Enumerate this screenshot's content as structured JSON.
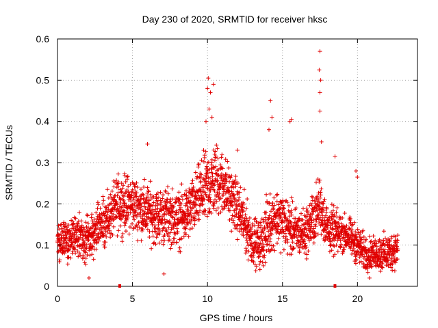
{
  "chart_data": {
    "type": "scatter",
    "title": "Day 230 of 2020, SRMTID for receiver hksc",
    "xlabel": "GPS time / hours",
    "ylabel": "SRMTID / TECUs",
    "xlim": [
      0,
      24
    ],
    "ylim": [
      0,
      0.6
    ],
    "x_ticks": [
      "0",
      "5",
      "10",
      "15",
      "20"
    ],
    "x_tick_values": [
      0,
      5,
      10,
      15,
      20
    ],
    "y_ticks": [
      "0",
      "0.1",
      "0.2",
      "0.3",
      "0.4",
      "0.5",
      "0.6"
    ],
    "y_tick_values": [
      0,
      0.1,
      0.2,
      0.3,
      0.4,
      0.5,
      0.6
    ],
    "grid": true,
    "marker": "+",
    "series": [
      {
        "name": "SRMTID",
        "color": "#e00000",
        "envelope": {
          "x": [
            0,
            0.5,
            1,
            1.5,
            2,
            2.5,
            3,
            3.5,
            4,
            4.5,
            5,
            5.5,
            6,
            6.5,
            7,
            7.5,
            8,
            8.5,
            9,
            9.5,
            10,
            10.5,
            11,
            11.5,
            12,
            12.5,
            13,
            13.5,
            14,
            14.5,
            15,
            15.5,
            16,
            16.5,
            17,
            17.5,
            18,
            18.5,
            19,
            19.5,
            20,
            20.5,
            21,
            21.5,
            22,
            22.5,
            22.7
          ],
          "center": [
            0.11,
            0.11,
            0.12,
            0.12,
            0.11,
            0.13,
            0.15,
            0.17,
            0.2,
            0.2,
            0.2,
            0.19,
            0.18,
            0.17,
            0.17,
            0.17,
            0.16,
            0.17,
            0.19,
            0.22,
            0.24,
            0.26,
            0.25,
            0.22,
            0.19,
            0.15,
            0.11,
            0.1,
            0.14,
            0.17,
            0.16,
            0.14,
            0.13,
            0.13,
            0.16,
            0.2,
            0.14,
            0.13,
            0.13,
            0.12,
            0.1,
            0.08,
            0.08,
            0.08,
            0.08,
            0.09,
            0.09
          ],
          "spread": [
            0.04,
            0.04,
            0.04,
            0.05,
            0.05,
            0.05,
            0.05,
            0.05,
            0.06,
            0.06,
            0.06,
            0.06,
            0.06,
            0.06,
            0.06,
            0.06,
            0.06,
            0.06,
            0.06,
            0.07,
            0.08,
            0.08,
            0.07,
            0.06,
            0.06,
            0.06,
            0.05,
            0.05,
            0.07,
            0.06,
            0.06,
            0.06,
            0.05,
            0.05,
            0.06,
            0.06,
            0.05,
            0.05,
            0.04,
            0.04,
            0.04,
            0.04,
            0.03,
            0.04,
            0.04,
            0.04,
            0.04
          ]
        },
        "outliers": [
          {
            "x": 10.0,
            "y": 0.48
          },
          {
            "x": 10.05,
            "y": 0.505
          },
          {
            "x": 10.2,
            "y": 0.47
          },
          {
            "x": 10.4,
            "y": 0.49
          },
          {
            "x": 10.1,
            "y": 0.43
          },
          {
            "x": 9.9,
            "y": 0.4
          },
          {
            "x": 10.3,
            "y": 0.41
          },
          {
            "x": 14.2,
            "y": 0.45
          },
          {
            "x": 14.3,
            "y": 0.41
          },
          {
            "x": 14.1,
            "y": 0.38
          },
          {
            "x": 15.6,
            "y": 0.405
          },
          {
            "x": 15.5,
            "y": 0.4
          },
          {
            "x": 17.5,
            "y": 0.57
          },
          {
            "x": 17.45,
            "y": 0.525
          },
          {
            "x": 17.55,
            "y": 0.5
          },
          {
            "x": 17.5,
            "y": 0.47
          },
          {
            "x": 17.5,
            "y": 0.425
          },
          {
            "x": 17.6,
            "y": 0.35
          },
          {
            "x": 18.5,
            "y": 0.315
          },
          {
            "x": 19.9,
            "y": 0.28
          },
          {
            "x": 20.0,
            "y": 0.265
          },
          {
            "x": 2.1,
            "y": 0.02
          },
          {
            "x": 7.1,
            "y": 0.03
          },
          {
            "x": 20.8,
            "y": 0.02
          },
          {
            "x": 12.0,
            "y": 0.33
          },
          {
            "x": 6.0,
            "y": 0.345
          }
        ],
        "markers_on_axis": [
          {
            "x": 4.15,
            "y": 0
          },
          {
            "x": 18.5,
            "y": 0
          }
        ]
      }
    ]
  }
}
